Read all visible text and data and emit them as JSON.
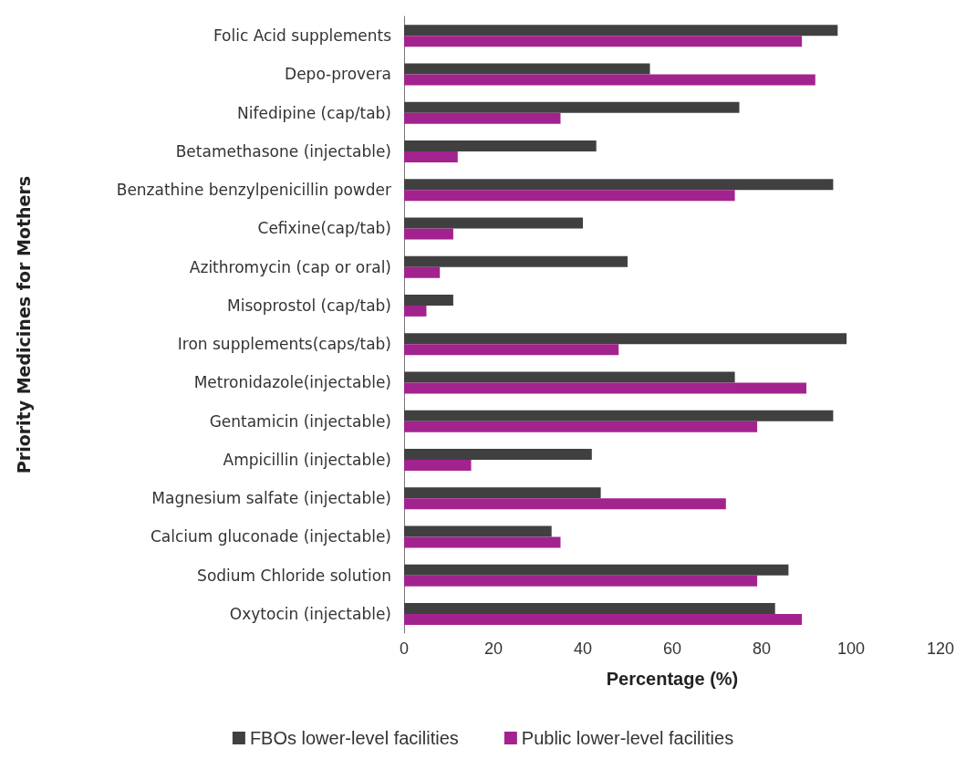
{
  "chart_data": {
    "type": "bar",
    "orientation": "horizontal",
    "xlabel": "Percentage (%)",
    "ylabel": "Priority Medicines for Mothers",
    "categories": [
      "Folic Acid supplements",
      "Depo-provera",
      "Nifedipine (cap/tab)",
      "Betamethasone (injectable)",
      "Benzathine benzylpenicillin powder",
      "Cefixine(cap/tab)",
      "Azithromycin (cap or oral)",
      "Misoprostol (cap/tab)",
      "Iron supplements(caps/tab)",
      "Metronidazole(injectable)",
      "Gentamicin (injectable)",
      "Ampicillin (injectable)",
      "Magnesium salfate (injectable)",
      "Calcium gluconade (injectable)",
      "Sodium Chloride solution",
      "Oxytocin (injectable)"
    ],
    "series": [
      {
        "name": "FBOs lower-level facilities",
        "color": "#404040",
        "values": [
          97,
          55,
          75,
          43,
          96,
          40,
          50,
          11,
          99,
          74,
          96,
          42,
          44,
          33,
          86,
          83
        ]
      },
      {
        "name": "Public lower-level facilities",
        "color": "#a3238e",
        "values": [
          89,
          92,
          35,
          12,
          74,
          11,
          8,
          5,
          48,
          90,
          79,
          15,
          72,
          35,
          79,
          89
        ]
      }
    ],
    "xlim": [
      0,
      120
    ],
    "xticks": [
      0,
      20,
      40,
      60,
      80,
      100,
      120
    ],
    "grid": false,
    "legend": "bottom"
  }
}
